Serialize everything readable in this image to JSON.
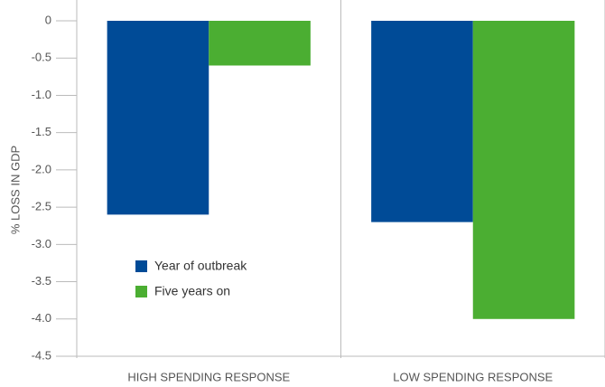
{
  "chart_data": {
    "type": "bar",
    "y_label": "% LOSS IN GDP",
    "categories": [
      "HIGH SPENDING RESPONSE",
      "LOW SPENDING RESPONSE"
    ],
    "series": [
      {
        "name": "Year of outbreak",
        "color": "#004b97",
        "values": [
          -2.6,
          -2.7
        ]
      },
      {
        "name": "Five years on",
        "color": "#4bae32",
        "values": [
          -0.6,
          -4.0
        ]
      }
    ],
    "ylim": [
      0,
      -4.5
    ],
    "yticks": [
      0,
      -0.5,
      {
        "value": -1,
        "label": "-1.0"
      },
      -1.5,
      {
        "value": -2,
        "label": "-2.0"
      },
      -2.5,
      {
        "value": -3,
        "label": "-3.0"
      },
      -3.5,
      {
        "value": -4,
        "label": "-4.0"
      },
      -4.5
    ],
    "legend": "lower left"
  }
}
